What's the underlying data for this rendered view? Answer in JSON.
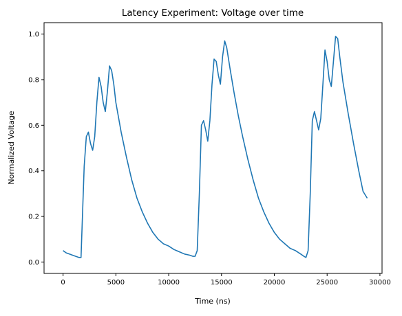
{
  "chart_data": {
    "type": "line",
    "title": "Latency Experiment: Voltage over time",
    "xlabel": "Time (ns)",
    "ylabel": "Normalized Voltage",
    "xlim": [
      -1800,
      30200
    ],
    "ylim": [
      -0.05,
      1.05
    ],
    "xticks": [
      0,
      5000,
      10000,
      15000,
      20000,
      25000,
      30000
    ],
    "xtick_labels": [
      "0",
      "5000",
      "10000",
      "15000",
      "20000",
      "25000",
      "30000"
    ],
    "yticks": [
      0.0,
      0.2,
      0.4,
      0.6,
      0.8,
      1.0
    ],
    "ytick_labels": [
      "0.0",
      "0.2",
      "0.4",
      "0.6",
      "0.8",
      "1.0"
    ],
    "grid": false,
    "series_color": "#1f77b4",
    "series": [
      {
        "x": [
          0,
          300,
          600,
          900,
          1200,
          1500,
          1700,
          1800,
          2000,
          2200,
          2400,
          2600,
          2800,
          3000,
          3200,
          3400,
          3600,
          3800,
          4000,
          4200,
          4400,
          4600,
          4800,
          5000,
          5500,
          6000,
          6500,
          7000,
          7500,
          8000,
          8500,
          9000,
          9500,
          10000,
          10500,
          11000,
          11500,
          12000,
          12300,
          12500,
          12700,
          12900,
          13100,
          13300,
          13500,
          13700,
          13900,
          14100,
          14300,
          14500,
          14700,
          14900,
          15100,
          15300,
          15500,
          15800,
          16200,
          16600,
          17000,
          17500,
          18000,
          18500,
          19000,
          19500,
          20000,
          20500,
          21000,
          21500,
          22000,
          22500,
          22800,
          23000,
          23200,
          23400,
          23600,
          23800,
          24000,
          24200,
          24400,
          24600,
          24800,
          25000,
          25200,
          25400,
          25600,
          25800,
          26000,
          26200,
          26500,
          27000,
          27500,
          28000,
          28400,
          28800
        ],
        "y": [
          0.05,
          0.04,
          0.035,
          0.03,
          0.025,
          0.02,
          0.02,
          0.15,
          0.42,
          0.55,
          0.57,
          0.52,
          0.49,
          0.55,
          0.7,
          0.81,
          0.77,
          0.7,
          0.66,
          0.75,
          0.86,
          0.84,
          0.78,
          0.7,
          0.57,
          0.46,
          0.36,
          0.28,
          0.22,
          0.17,
          0.13,
          0.1,
          0.08,
          0.07,
          0.055,
          0.045,
          0.035,
          0.03,
          0.025,
          0.025,
          0.05,
          0.3,
          0.6,
          0.62,
          0.58,
          0.53,
          0.62,
          0.78,
          0.89,
          0.88,
          0.82,
          0.78,
          0.9,
          0.97,
          0.94,
          0.85,
          0.74,
          0.64,
          0.55,
          0.45,
          0.36,
          0.28,
          0.22,
          0.17,
          0.13,
          0.1,
          0.08,
          0.06,
          0.05,
          0.035,
          0.025,
          0.02,
          0.05,
          0.3,
          0.62,
          0.66,
          0.62,
          0.58,
          0.63,
          0.78,
          0.93,
          0.88,
          0.8,
          0.77,
          0.88,
          0.99,
          0.98,
          0.9,
          0.79,
          0.65,
          0.52,
          0.4,
          0.31,
          0.28
        ]
      }
    ]
  }
}
